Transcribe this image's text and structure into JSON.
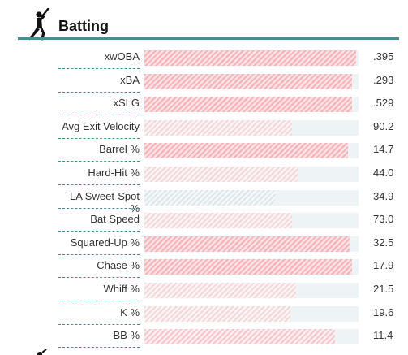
{
  "section": {
    "title": "Batting",
    "icon": "batter-icon"
  },
  "rows": [
    {
      "label": "xwOBA",
      "value": ".395",
      "percentile": 99,
      "tone": "strong"
    },
    {
      "label": "xBA",
      "value": ".293",
      "percentile": 97,
      "tone": "strong"
    },
    {
      "label": "xSLG",
      "value": ".529",
      "percentile": 97,
      "tone": "strong"
    },
    {
      "label": "Avg Exit Velocity",
      "value": "90.2",
      "percentile": 69,
      "tone": "light"
    },
    {
      "label": "Barrel %",
      "value": "14.7",
      "percentile": 95,
      "tone": "strong"
    },
    {
      "label": "Hard-Hit %",
      "value": "44.0",
      "percentile": 72,
      "tone": "light"
    },
    {
      "label": "LA Sweet-Spot %",
      "value": "34.9",
      "percentile": 61,
      "tone": "cool"
    },
    {
      "label": "Bat Speed",
      "value": "73.0",
      "percentile": 69,
      "tone": "light"
    },
    {
      "label": "Squared-Up %",
      "value": "32.5",
      "percentile": 96,
      "tone": "strong"
    },
    {
      "label": "Chase %",
      "value": "17.9",
      "percentile": 97,
      "tone": "strong"
    },
    {
      "label": "Whiff %",
      "value": "21.5",
      "percentile": 71,
      "tone": "light"
    },
    {
      "label": "K %",
      "value": "19.6",
      "percentile": 68,
      "tone": "light"
    },
    {
      "label": "BB %",
      "value": "11.4",
      "percentile": 89,
      "tone": "medium"
    }
  ]
}
